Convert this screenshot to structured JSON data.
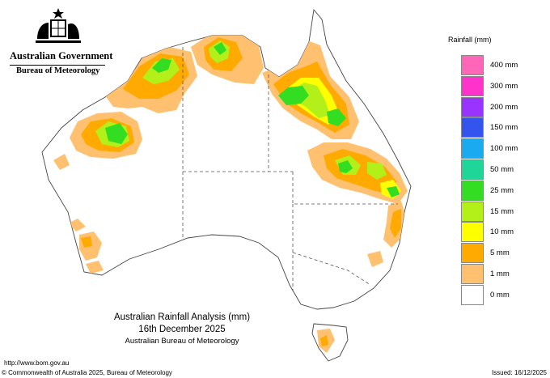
{
  "header": {
    "gov_title": "Australian Government",
    "bom_title": "Bureau of Meteorology",
    "crest_icon": "commonwealth-coat-of-arms"
  },
  "map": {
    "region": "Australia",
    "land_color": "#ffffff",
    "boundary_color": "#555555"
  },
  "legend": {
    "title": "Rainfall (mm)",
    "items": [
      {
        "label": "400 mm",
        "color": "#ff66b8"
      },
      {
        "label": "300 mm",
        "color": "#ff33cc"
      },
      {
        "label": "200 mm",
        "color": "#9933ff"
      },
      {
        "label": "150 mm",
        "color": "#3355ee"
      },
      {
        "label": "100 mm",
        "color": "#1aaaf0"
      },
      {
        "label": "50 mm",
        "color": "#1fd699"
      },
      {
        "label": "25 mm",
        "color": "#33dd22"
      },
      {
        "label": "15 mm",
        "color": "#b3f01a"
      },
      {
        "label": "10 mm",
        "color": "#ffff00"
      },
      {
        "label": "5 mm",
        "color": "#ffaa00"
      },
      {
        "label": "1 mm",
        "color": "#ffc070"
      },
      {
        "label": "0 mm",
        "color": "#ffffff"
      }
    ]
  },
  "caption": {
    "title": "Australian Rainfall Analysis (mm)",
    "date": "16th December 2025",
    "agency": "Australian Bureau of Meteorology"
  },
  "footer": {
    "url": "http://www.bom.gov.au",
    "copyright": "© Commonwealth of Australia 2025, Bureau of Meteorology",
    "issued": "Issued: 16/12/2025"
  }
}
